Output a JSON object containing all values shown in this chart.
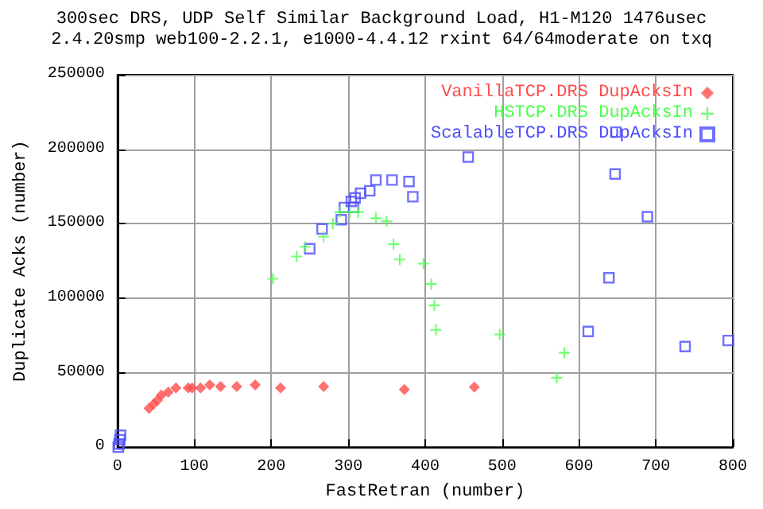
{
  "chart_data": {
    "type": "scatter",
    "title": "300sec DRS, UDP Self Similar Background Load, H1-M120 1476usec",
    "subtitle": "2.4.20smp web100-2.2.1, e1000-4.4.12 rxint 64/64moderate on txq",
    "xlabel": "FastRetran (number)",
    "ylabel": "Duplicate Acks (number)",
    "xlim": [
      0,
      800
    ],
    "xticks": [
      0,
      100,
      200,
      300,
      400,
      500,
      600,
      700,
      800
    ],
    "ylim": [
      0,
      250000
    ],
    "yticks": [
      0,
      50000,
      100000,
      150000,
      200000,
      250000
    ],
    "grid": true,
    "legend": "top right",
    "series": [
      {
        "name": "VanillaTCP.DRS DupAcksIn",
        "color": "#ff4d4d",
        "marker": "diamond",
        "x": [
          41,
          47,
          52,
          57,
          66,
          76,
          92,
          97,
          108,
          120,
          134,
          155,
          179,
          212,
          268,
          373,
          464
        ],
        "values": [
          26000,
          29000,
          31500,
          35000,
          37000,
          39700,
          39700,
          39700,
          39700,
          41800,
          40700,
          40700,
          41800,
          39700,
          40700,
          38700,
          40300
        ]
      },
      {
        "name": "HSTCP.DRS DupAcksIn",
        "color": "#4dff4d",
        "marker": "cross",
        "x": [
          202,
          233,
          244,
          268,
          280,
          289,
          302,
          313,
          336,
          350,
          359,
          367,
          398,
          408,
          412,
          414,
          497,
          571,
          581
        ],
        "values": [
          113000,
          128000,
          134500,
          141300,
          150000,
          157800,
          157800,
          157800,
          153700,
          151600,
          136200,
          126000,
          123200,
          109500,
          95200,
          78700,
          75700,
          46500,
          63300
        ]
      },
      {
        "name": "ScalableTCP.DRS DupAcksIn",
        "color": "#4d4dff",
        "marker": "square",
        "x": [
          1,
          2,
          3,
          4,
          250,
          266,
          291,
          295,
          304,
          307,
          309,
          316,
          328,
          336,
          357,
          379,
          384,
          456,
          612,
          639,
          647,
          648,
          689,
          738,
          794
        ],
        "values": [
          0,
          2000,
          5000,
          8000,
          133200,
          146500,
          152700,
          160900,
          165000,
          160900,
          167400,
          170400,
          172100,
          179300,
          179300,
          178300,
          168100,
          194700,
          77700,
          113700,
          183400,
          211500,
          154700,
          67500,
          71600
        ]
      }
    ]
  }
}
